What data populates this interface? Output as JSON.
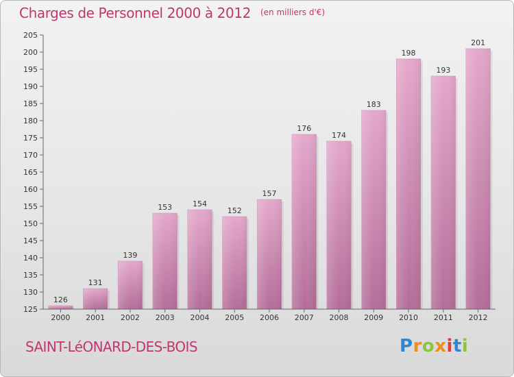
{
  "header": {
    "title": "Charges de Personnel 2000 à 2012",
    "subtitle": "(en milliers d'€)"
  },
  "footer": {
    "commune": "SAINT-LéONARD-DES-BOIS",
    "logo": "Proxiti"
  },
  "colors": {
    "title": "#c0366d",
    "bar_top": "#e4a8cb",
    "bar_bottom": "#b46e99",
    "background": "#e6e6e6"
  },
  "chart_data": {
    "type": "bar",
    "categories": [
      "2000",
      "2001",
      "2002",
      "2003",
      "2004",
      "2005",
      "2006",
      "2007",
      "2008",
      "2009",
      "2010",
      "2011",
      "2012"
    ],
    "values": [
      126,
      131,
      139,
      153,
      154,
      152,
      157,
      176,
      174,
      183,
      198,
      193,
      201
    ],
    "ylim": [
      125,
      205
    ],
    "yticks": [
      125,
      130,
      135,
      140,
      145,
      150,
      155,
      160,
      165,
      170,
      175,
      180,
      185,
      190,
      195,
      200,
      205
    ],
    "grid": false,
    "data_labels": true
  }
}
